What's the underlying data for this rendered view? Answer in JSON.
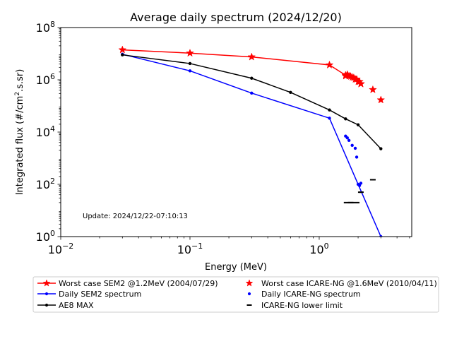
{
  "chart_data": {
    "type": "line",
    "title": "Average daily spectrum (2024/12/20)",
    "xlabel": "Energy (MeV)",
    "ylabel_main": "Integrated flux (#/cm",
    "ylabel_sup": "2",
    "ylabel_tail": ".s.sr)",
    "xscale": "log",
    "yscale": "log",
    "xlim": [
      0.01,
      5.2
    ],
    "ylim": [
      1,
      100000000
    ],
    "x_ticks": [
      {
        "value": 0.01,
        "base": "10",
        "exp": "−2"
      },
      {
        "value": 0.1,
        "base": "10",
        "exp": "−1"
      },
      {
        "value": 1,
        "base": "10",
        "exp": "0"
      }
    ],
    "y_ticks": [
      {
        "value": 1,
        "base": "10",
        "exp": "0"
      },
      {
        "value": 100,
        "base": "10",
        "exp": "2"
      },
      {
        "value": 10000,
        "base": "10",
        "exp": "4"
      },
      {
        "value": 1000000,
        "base": "10",
        "exp": "6"
      },
      {
        "value": 100000000,
        "base": "10",
        "exp": "8"
      }
    ],
    "grid": false,
    "legend_position": "below",
    "annotation": "Update: 2024/12/22-07:10:13",
    "series": [
      {
        "name": "Worst case SEM2 @1.2MeV (2004/07/29)",
        "color": "#ff0000",
        "marker": "star",
        "line": true,
        "x": [
          0.03,
          0.1,
          0.3,
          1.2,
          1.6,
          1.7,
          1.8,
          1.9,
          2.0,
          2.1
        ],
        "y": [
          14000000,
          10500000,
          7500000,
          3700000,
          1500000,
          1400000,
          1250000,
          1050000,
          850000,
          700000
        ]
      },
      {
        "name": "Daily SEM2 spectrum",
        "color": "#0000ff",
        "marker": "dot",
        "line": true,
        "x": [
          0.03,
          0.1,
          0.3,
          1.2,
          2.0,
          3.0
        ],
        "y": [
          9500000,
          2200000,
          310000,
          34000,
          100,
          1
        ]
      },
      {
        "name": "AE8 MAX",
        "color": "#000000",
        "marker": "dot",
        "line": true,
        "x": [
          0.03,
          0.1,
          0.3,
          0.6,
          1.2,
          1.6,
          2.0,
          3.0
        ],
        "y": [
          9000000,
          4200000,
          1150000,
          330000,
          70000,
          32000,
          19000,
          2300
        ]
      },
      {
        "name": "Worst case ICARE-NG @1.6MeV (2010/04/11)",
        "color": "#ff0000",
        "marker": "star",
        "line": false,
        "x": [
          1.6,
          1.65,
          1.75,
          1.85,
          1.95,
          2.05,
          2.1,
          2.6,
          3.0
        ],
        "y": [
          1400000,
          1600000,
          1350000,
          1200000,
          1050000,
          850000,
          700000,
          420000,
          170000
        ]
      },
      {
        "name": "Daily ICARE-NG spectrum",
        "color": "#0000ff",
        "marker": "dot",
        "line": false,
        "x": [
          1.6,
          1.65,
          1.7,
          1.8,
          1.9,
          1.95,
          2.05,
          2.1
        ],
        "y": [
          7000,
          6000,
          4800,
          3100,
          2400,
          1100,
          90,
          110
        ]
      },
      {
        "name": "ICARE-NG lower limit",
        "color": "#000000",
        "marker": "dash",
        "line": false,
        "x": [
          1.75,
          2.1,
          2.6
        ],
        "y": [
          20,
          50,
          150
        ]
      }
    ]
  }
}
